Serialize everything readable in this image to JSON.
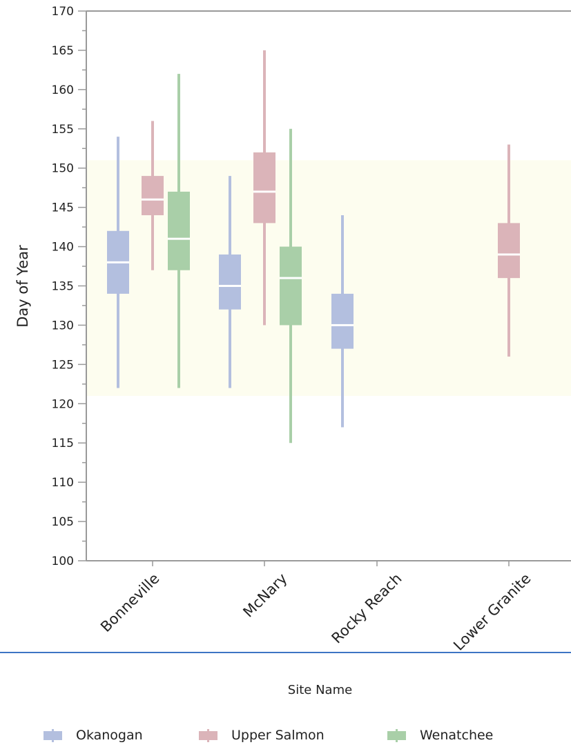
{
  "chart_data": {
    "type": "box",
    "xlabel": "Site Name",
    "ylabel": "Day of Year",
    "ylim": [
      100,
      170
    ],
    "yticks": [
      100,
      105,
      110,
      115,
      120,
      125,
      130,
      135,
      140,
      145,
      150,
      155,
      160,
      165,
      170
    ],
    "reference_band": [
      121,
      151
    ],
    "categories": [
      "Bonneville",
      "McNary",
      "Rocky Reach",
      "Lower Granite"
    ],
    "series": [
      {
        "name": "Okanogan",
        "color": "#b3bfdf",
        "boxes": [
          {
            "category": "Bonneville",
            "min": 122,
            "q1": 134,
            "median": 138,
            "q3": 142,
            "max": 154
          },
          {
            "category": "McNary",
            "min": 122,
            "q1": 132,
            "median": 135,
            "q3": 139,
            "max": 149
          },
          {
            "category": "Rocky Reach",
            "min": 117,
            "q1": 127,
            "median": 130,
            "q3": 134,
            "max": 144
          }
        ]
      },
      {
        "name": "Upper Salmon",
        "color": "#dbb4b9",
        "boxes": [
          {
            "category": "Bonneville",
            "min": 137,
            "q1": 144,
            "median": 146,
            "q3": 149,
            "max": 156
          },
          {
            "category": "McNary",
            "min": 130,
            "q1": 143,
            "median": 147,
            "q3": 152,
            "max": 165
          },
          {
            "category": "Lower Granite",
            "min": 126,
            "q1": 136,
            "median": 139,
            "q3": 143,
            "max": 153
          }
        ]
      },
      {
        "name": "Wenatchee",
        "color": "#a9cfa8",
        "boxes": [
          {
            "category": "Bonneville",
            "min": 122,
            "q1": 137,
            "median": 141,
            "q3": 147,
            "max": 162
          },
          {
            "category": "McNary",
            "min": 115,
            "q1": 130,
            "median": 136,
            "q3": 140,
            "max": 155
          }
        ]
      }
    ],
    "legend_position": "bottom"
  }
}
